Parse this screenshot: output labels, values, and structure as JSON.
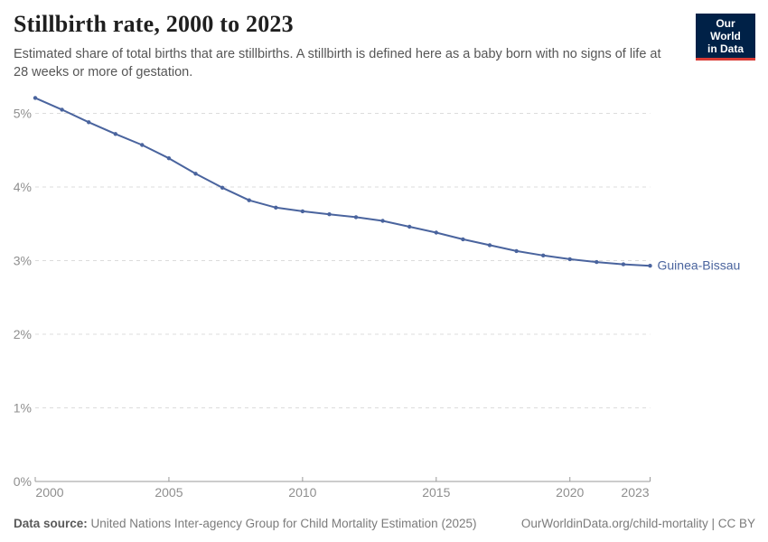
{
  "header": {
    "title": "Stillbirth rate, 2000 to 2023",
    "subtitle": "Estimated share of total births that are stillbirths. A stillbirth is defined here as a baby born with no signs of life at 28 weeks or more of gestation.",
    "logo": {
      "line1": "Our World",
      "line2": "in Data"
    }
  },
  "chart_data": {
    "type": "line",
    "title": "Stillbirth rate, 2000 to 2023",
    "xlabel": "",
    "ylabel": "",
    "x": [
      2000,
      2001,
      2002,
      2003,
      2004,
      2005,
      2006,
      2007,
      2008,
      2009,
      2010,
      2011,
      2012,
      2013,
      2014,
      2015,
      2016,
      2017,
      2018,
      2019,
      2020,
      2021,
      2022,
      2023
    ],
    "series": [
      {
        "name": "Guinea-Bissau",
        "color": "#4a649e",
        "values": [
          5.21,
          5.05,
          4.88,
          4.72,
          4.57,
          4.39,
          4.18,
          3.99,
          3.82,
          3.72,
          3.67,
          3.63,
          3.59,
          3.54,
          3.46,
          3.38,
          3.29,
          3.21,
          3.13,
          3.07,
          3.02,
          2.98,
          2.95,
          2.93
        ]
      }
    ],
    "xlim": [
      2000,
      2023
    ],
    "ylim": [
      0,
      5.35
    ],
    "yticks": [
      0,
      1,
      2,
      3,
      4,
      5
    ],
    "ytick_labels": [
      "0%",
      "1%",
      "2%",
      "3%",
      "4%",
      "5%"
    ],
    "xticks": [
      2000,
      2005,
      2010,
      2015,
      2020,
      2023
    ],
    "xtick_labels": [
      "2000",
      "2005",
      "2010",
      "2015",
      "2020",
      "2023"
    ],
    "grid": "horizontal-dashed",
    "legend_position": "end-of-line-label",
    "markers": true
  },
  "footer": {
    "source_label": "Data source:",
    "source_text": " United Nations Inter-agency Group for Child Mortality Estimation (2025)",
    "link_text": "OurWorldinData.org/child-mortality | CC BY"
  },
  "colors": {
    "line": "#4a649e",
    "entity_label": "#4a649e",
    "gridline": "#dcdcdc",
    "axis": "#999999",
    "tick_label": "#8f8f8f",
    "title": "#1f1f1f",
    "subtitle": "#565656",
    "logo_bg": "#002147",
    "logo_stripe": "#d93a34",
    "footer_text": "#7b7b7b"
  }
}
